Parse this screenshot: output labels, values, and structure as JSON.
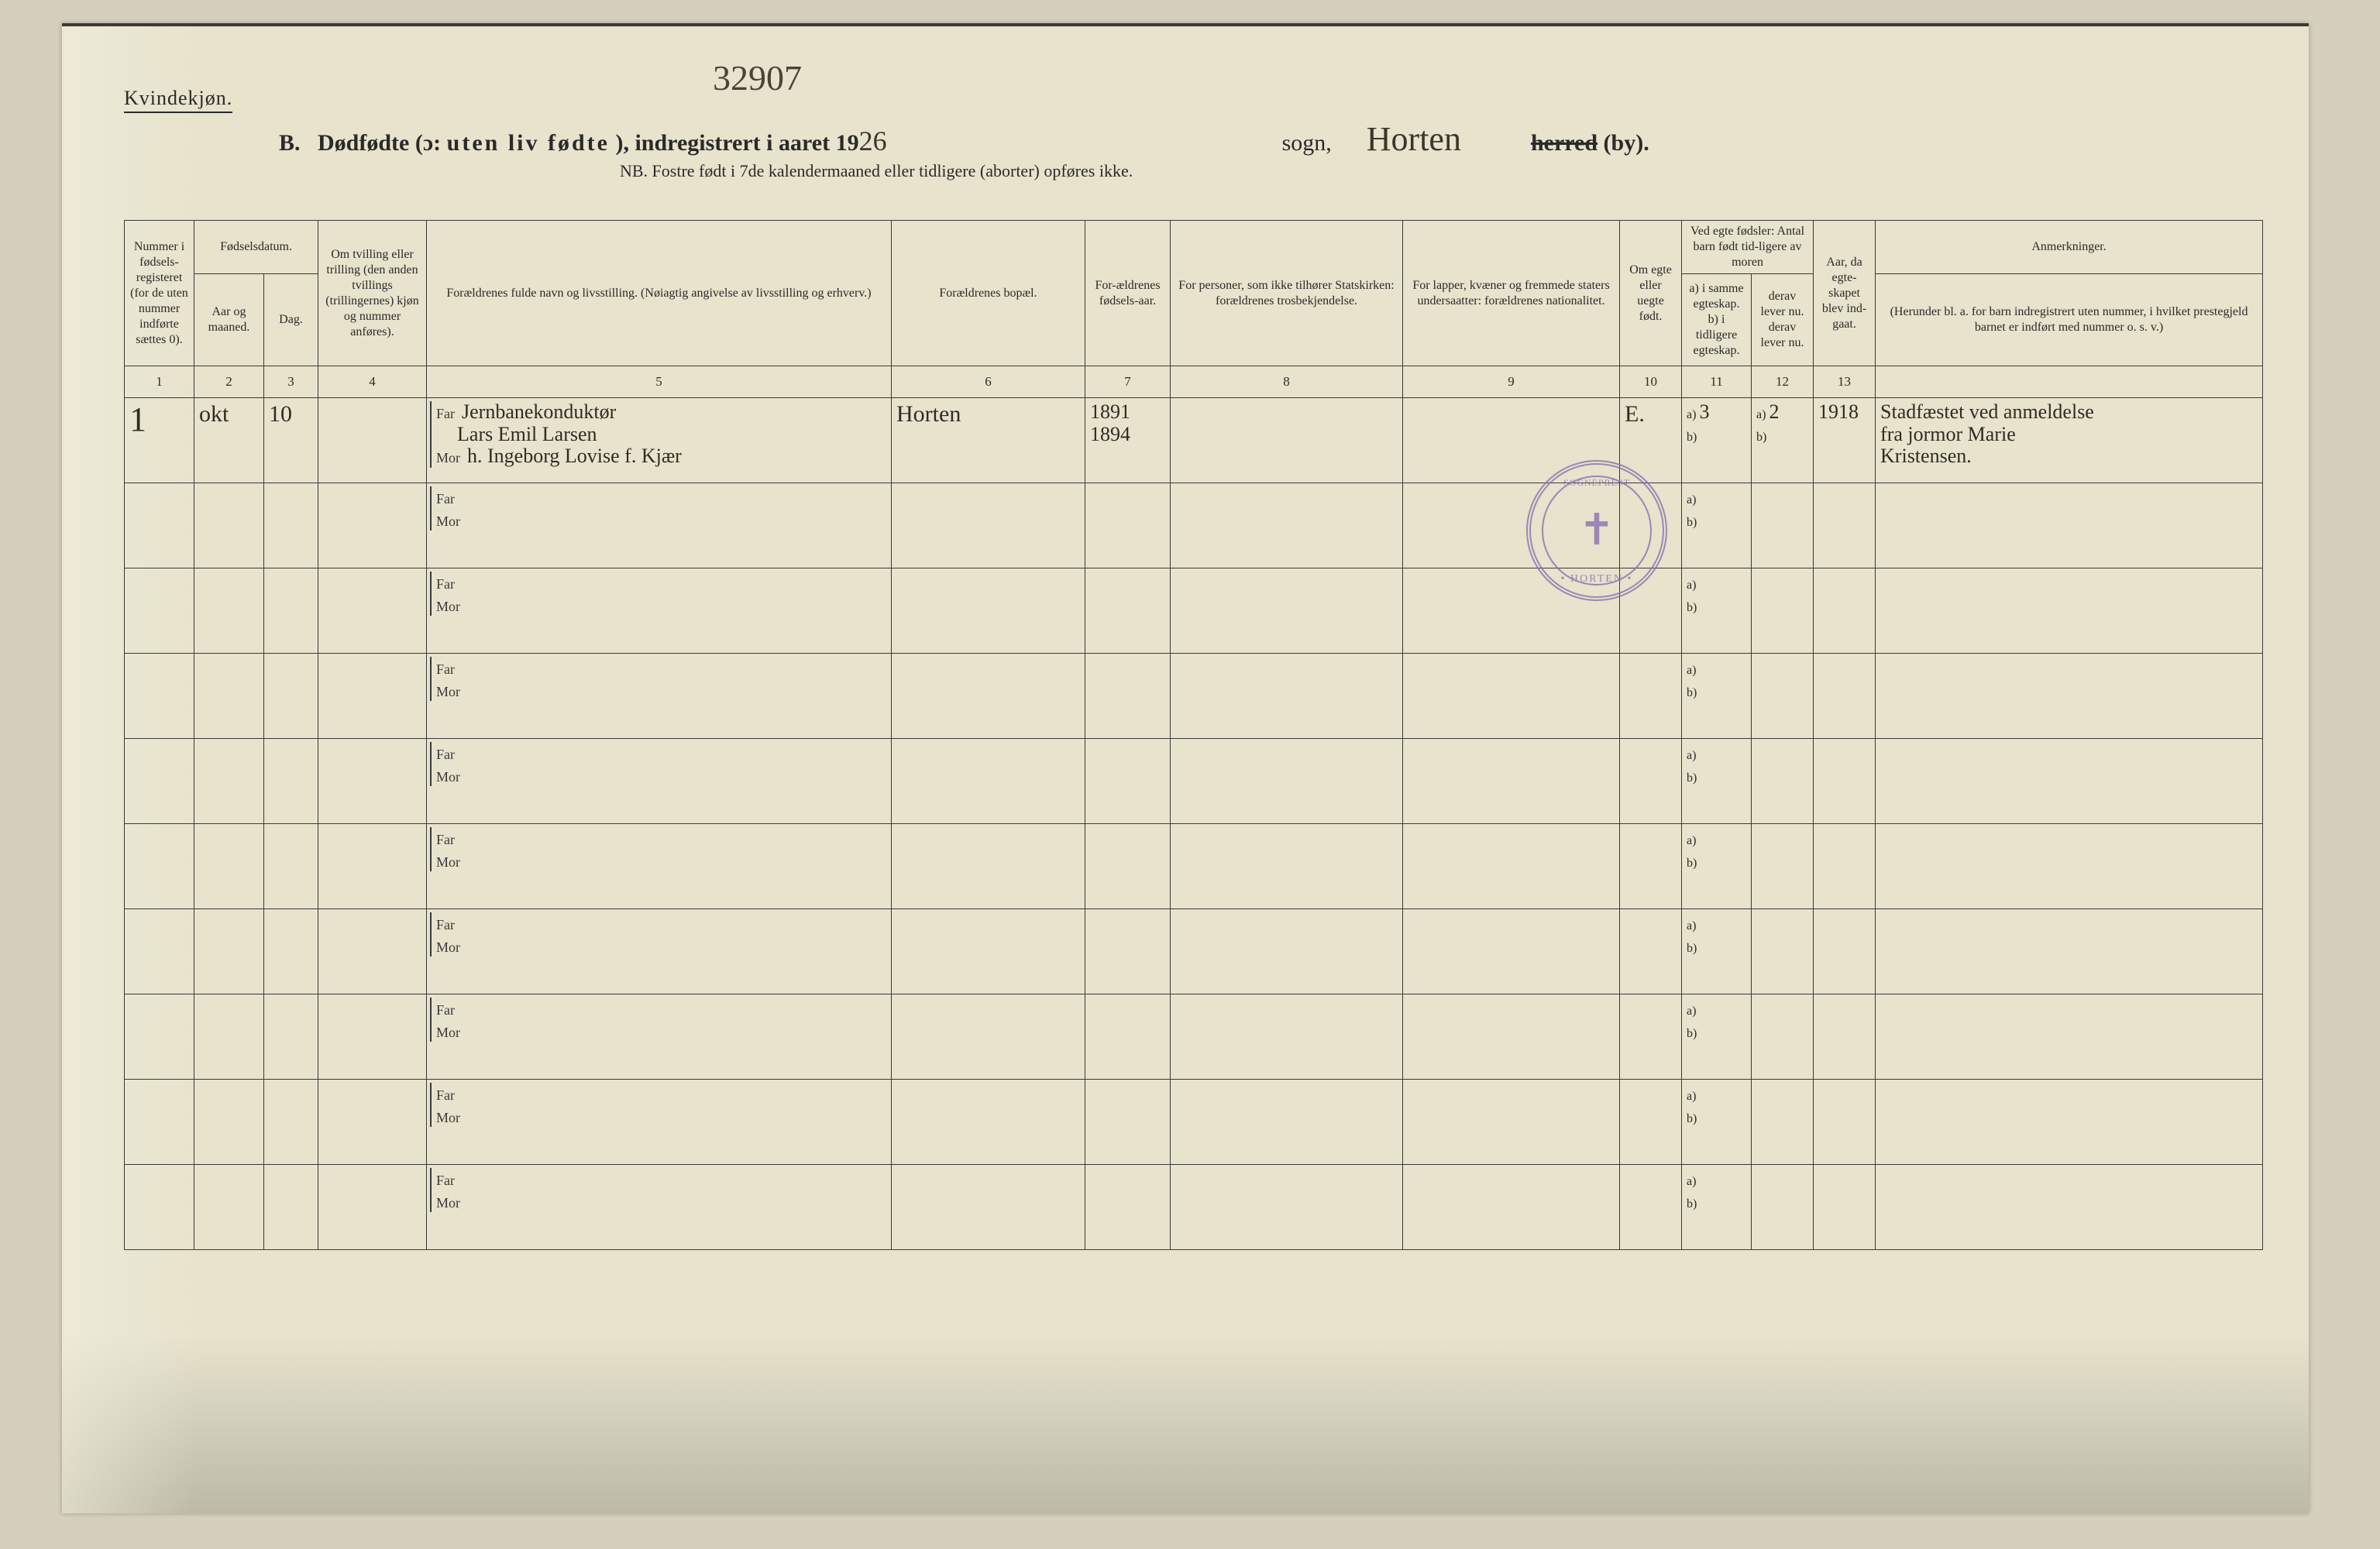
{
  "corner_number": "32907",
  "gender_label": "Kvindekjøn.",
  "title": {
    "prefix_b": "B.",
    "main": "Dødfødte (ɔ:",
    "spaced": "uten liv fødte",
    "after": "), indregistrert i aaret 19",
    "year_written": "26",
    "sogn_label": "sogn,",
    "parish_written": "Horten",
    "herred_strike": "herred",
    "by": "(by)."
  },
  "subtitle": "NB.  Fostre født i 7de kalendermaaned eller tidligere (aborter) opføres ikke.",
  "columns": {
    "c1": "Nummer i fødsels-registeret (for de uten nummer indførte sættes 0).",
    "c2_group": "Fødselsdatum.",
    "c2": "Aar og maaned.",
    "c3": "Dag.",
    "c4": "Om tvilling eller trilling (den anden tvillings (trillingernes) kjøn og nummer anføres).",
    "c5": "Forældrenes fulde navn og livsstilling. (Nøiagtig angivelse av livsstilling og erhverv.)",
    "c6": "Forældrenes bopæl.",
    "c7": "For-ældrenes fødsels-aar.",
    "c8": "For personer, som ikke tilhører Statskirken: forældrenes trosbekjendelse.",
    "c9": "For lapper, kvæner og fremmede staters undersaatter: forældrenes nationalitet.",
    "c10": "Om egte eller uegte født.",
    "c11_group": "Ved egte fødsler: Antal barn født tid-ligere av moren",
    "c11": "a) i samme egteskap. b) i tidligere egteskap.",
    "c12": "derav lever nu. derav lever nu.",
    "c13": "Aar, da egte-skapet blev ind-gaat.",
    "c14_group": "Anmerkninger.",
    "c14": "(Herunder bl. a. for barn indregistrert uten nummer, i hvilket prestegjeld barnet er indført med nummer o. s. v.)"
  },
  "colnums": [
    "1",
    "2",
    "3",
    "4",
    "5",
    "6",
    "7",
    "8",
    "9",
    "10",
    "11",
    "12",
    "13"
  ],
  "far_label": "Far",
  "mor_label": "Mor",
  "ab_a": "a)",
  "ab_b": "b)",
  "stamp": {
    "top": "SOGNEPREST",
    "bottom": "• HORTEN •"
  },
  "entry": {
    "num": "1",
    "month": "okt",
    "day": "10",
    "far_occupation": "Jernbanekonduktør",
    "far_name": "Lars Emil Larsen",
    "mor_name": "h. Ingeborg Lovise f. Kjær",
    "bopel": "Horten",
    "far_year": "1891",
    "mor_year": "1894",
    "egte": "E.",
    "born_a": "3",
    "lever_a": "2",
    "married_year": "1918",
    "remark_l1": "Stadfæstet ved anmeldelse",
    "remark_l2": "fra jormor Marie",
    "remark_l3": "Kristensen."
  }
}
